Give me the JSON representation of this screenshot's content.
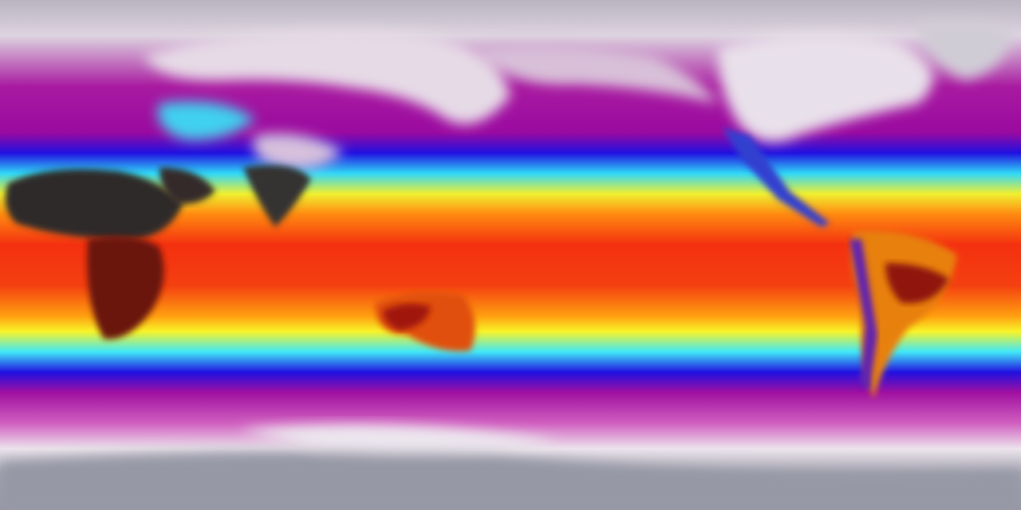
{
  "map": {
    "projection": "equirectangular",
    "field": "temperature",
    "colormap": [
      "#9ea0ac",
      "#e8dfe8",
      "#c040b0",
      "#a00898",
      "#1a10e0",
      "#30e8f8",
      "#f8f820",
      "#ff8010",
      "#f02a10",
      "#2e2a2c"
    ]
  }
}
